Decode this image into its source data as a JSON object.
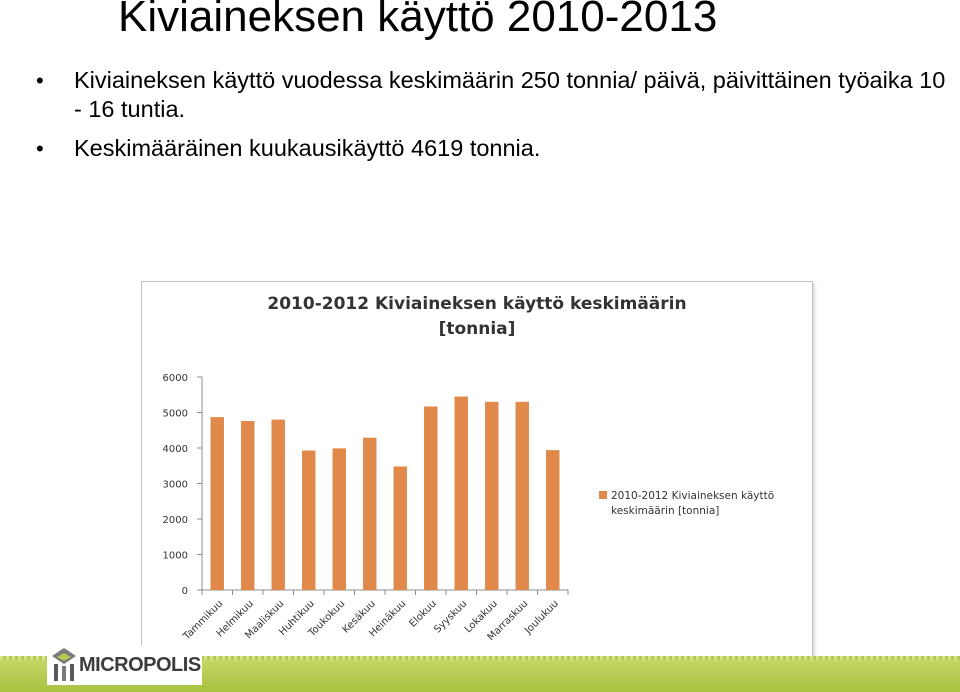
{
  "slide": {
    "title": "Kiviaineksen käyttö 2010-2013",
    "bullets": [
      "Kiviaineksen käyttö vuodessa keskimäärin 250 tonnia/ päivä, päivittäinen työaika 10 - 16 tuntia.",
      "Keskimääräinen kuukausikäyttö 4619 tonnia."
    ]
  },
  "logo": {
    "text": "MICROPOLIS"
  },
  "colors": {
    "bar": "#E0894A",
    "grid": "#d9d9d9",
    "footer": "#b3c94f"
  },
  "chart_data": {
    "type": "bar",
    "title": "2010-2012 Kiviaineksen käyttö keskimäärin [tonnia]",
    "title_lines": [
      "2010-2012 Kiviaineksen käyttö keskimäärin",
      "[tonnia]"
    ],
    "categories": [
      "Tammikuu",
      "Helmikuu",
      "Maaliskuu",
      "Huhtikuu",
      "Toukokuu",
      "Kesäkuu",
      "Heinäkuu",
      "Elokuu",
      "Syyskuu",
      "Lokakuu",
      "Marraskuu",
      "Joulukuu"
    ],
    "series": [
      {
        "name": "2010-2012 Kiviaineksen käyttö keskimäärin [tonnia]",
        "name_lines": [
          "2010-2012 Kiviaineksen käyttö",
          "keskimäärin [tonnia]"
        ],
        "values": [
          4870,
          4760,
          4800,
          3930,
          3990,
          4290,
          3480,
          5170,
          5450,
          5300,
          5300,
          3940
        ]
      }
    ],
    "yticks": [
      0,
      1000,
      2000,
      3000,
      4000,
      5000,
      6000
    ],
    "ylim": [
      0,
      6000
    ],
    "grid": false,
    "legend": "right"
  }
}
